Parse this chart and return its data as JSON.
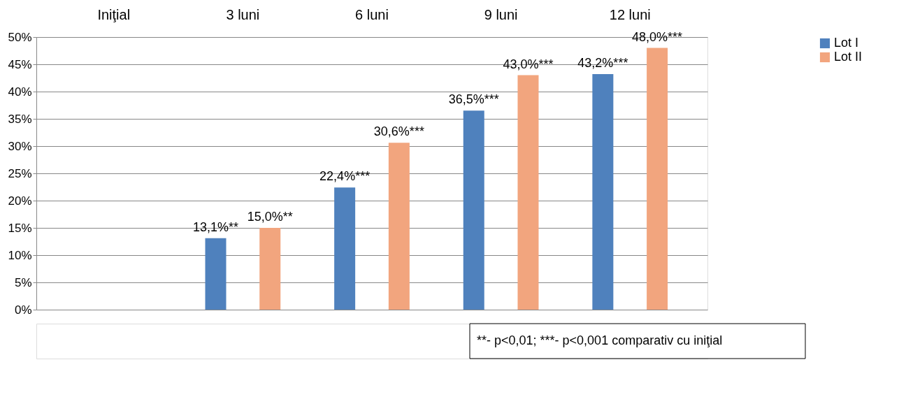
{
  "chart_data": {
    "type": "bar",
    "categories": [
      "Iniţial",
      "3 luni",
      "6 luni",
      "9 luni",
      "12 luni"
    ],
    "series": [
      {
        "name": "Lot I",
        "color": "#4f81bd",
        "values": [
          0,
          13.1,
          22.4,
          36.5,
          43.2
        ],
        "value_labels": [
          null,
          "13,1%**",
          "22,4%***",
          "36,5%***",
          "43,2%***"
        ]
      },
      {
        "name": "Lot II",
        "color": "#f2a57e",
        "values": [
          0,
          15.0,
          30.6,
          43.0,
          48.0
        ],
        "value_labels": [
          null,
          "15,0%**",
          "30,6%***",
          "43,0%***",
          "48,0%***"
        ]
      }
    ],
    "ylim": [
      0,
      50
    ],
    "yticks": [
      {
        "value": 0,
        "label": "0%"
      },
      {
        "value": 5,
        "label": "5%"
      },
      {
        "value": 10,
        "label": "10%"
      },
      {
        "value": 15,
        "label": "15%"
      },
      {
        "value": 20,
        "label": "20%"
      },
      {
        "value": 25,
        "label": "25%"
      },
      {
        "value": 30,
        "label": "30%"
      },
      {
        "value": 35,
        "label": "35%"
      },
      {
        "value": 40,
        "label": "40%"
      },
      {
        "value": 45,
        "label": "45%"
      },
      {
        "value": 50,
        "label": "50%"
      }
    ],
    "grid": "y",
    "legend": "right",
    "annotations": [
      "**- p<0,01; ***- p<0,001 comparativ cu iniţial"
    ]
  }
}
